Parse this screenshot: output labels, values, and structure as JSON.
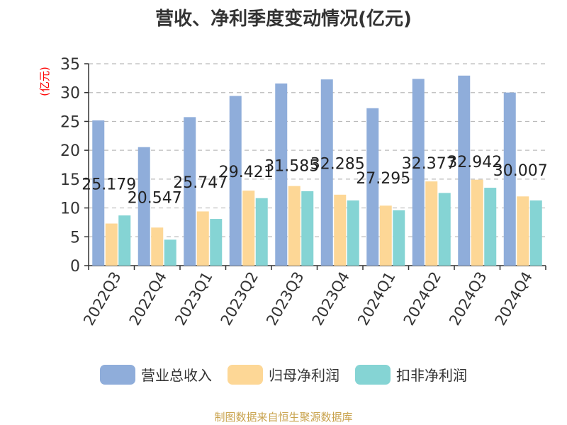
{
  "title": "营收、净利季度变动情况(亿元)",
  "footer": "制图数据来自恒生聚源数据库",
  "colors": {
    "revenue": "#8fadda",
    "net_profit": "#fdd796",
    "deducted_profit": "#85d4d4",
    "axis": "#333333",
    "grid": "#bbbbbb",
    "ylabel": "#ff0000",
    "label": "#222222"
  },
  "chart_data": {
    "type": "bar",
    "title": "营收、净利季度变动情况(亿元)",
    "ylabel": "(亿元)",
    "xlabel": "",
    "ylim": [
      0,
      35
    ],
    "yticks": [
      0,
      5,
      10,
      15,
      20,
      25,
      30,
      35
    ],
    "grid": true,
    "legend_position": "bottom",
    "categories": [
      "2022Q3",
      "2022Q4",
      "2023Q1",
      "2023Q2",
      "2023Q3",
      "2023Q4",
      "2024Q1",
      "2024Q2",
      "2024Q3",
      "2024Q4"
    ],
    "series": [
      {
        "name": "营业总收入",
        "color_key": "revenue",
        "values": [
          25.179,
          20.547,
          25.747,
          29.421,
          31.585,
          32.285,
          27.295,
          32.377,
          32.942,
          30.007
        ]
      },
      {
        "name": "归母净利润",
        "color_key": "net_profit",
        "values": [
          7.3,
          6.6,
          9.4,
          13.0,
          13.8,
          12.3,
          10.4,
          14.6,
          14.9,
          12.0
        ]
      },
      {
        "name": "扣非净利润",
        "color_key": "deducted_profit",
        "values": [
          8.7,
          4.5,
          8.1,
          11.7,
          12.9,
          11.3,
          9.6,
          12.6,
          13.5,
          11.3
        ]
      }
    ],
    "data_labels": [
      "25.179",
      "20.547",
      "25.747",
      "29.421",
      "31.585",
      "32.285",
      "27.295",
      "32.377",
      "32.942",
      "30.007"
    ]
  }
}
